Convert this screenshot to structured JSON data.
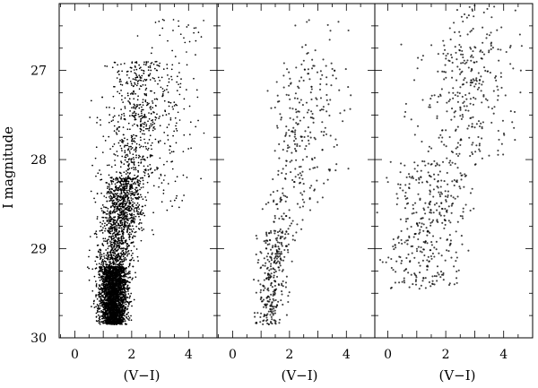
{
  "chart_data": {
    "type": "scatter",
    "ylabel": "I magnitude",
    "y_axis": {
      "range": [
        30.0,
        26.25
      ],
      "inverted": true,
      "ticks": [
        27,
        28,
        29,
        30
      ],
      "tick_labels": [
        "27",
        "28",
        "29",
        "30"
      ]
    },
    "grid": false,
    "legend": "none",
    "marker_color": "#000000",
    "panels": [
      {
        "xlabel": "(V−I)",
        "xlim": [
          -0.55,
          5.0
        ],
        "x_ticks": [
          0,
          2,
          4
        ],
        "x_tick_labels": [
          "0",
          "2",
          "4"
        ],
        "n_points": 4500,
        "groups": [
          {
            "points": 2600,
            "x_center": 1.35,
            "x_spread": 0.24,
            "y_range": [
              29.2,
              29.85
            ],
            "shape": "dense_base"
          },
          {
            "points": 1200,
            "x_center": 1.3,
            "x_spread": 0.28,
            "y_range": [
              28.2,
              29.2
            ],
            "shape": "rgb_lower"
          },
          {
            "points": 550,
            "x_center": 1.5,
            "x_spread": 0.4,
            "y_range": [
              26.9,
              28.2
            ],
            "shape": "rgb_upper"
          },
          {
            "points": 150,
            "x_center": 3.0,
            "x_spread": 0.9,
            "y_range": [
              26.4,
              28.6
            ],
            "shape": "red_fan"
          }
        ]
      },
      {
        "xlabel": "(V−I)",
        "xlim": [
          -0.55,
          5.0
        ],
        "x_ticks": [
          0,
          2,
          4
        ],
        "x_tick_labels": [
          "0",
          "2",
          "4"
        ],
        "n_points": 600,
        "groups": [
          {
            "points": 300,
            "x_center": 1.35,
            "x_spread": 0.25,
            "y_range": [
              28.8,
              29.85
            ],
            "shape": "rgb_lower"
          },
          {
            "points": 220,
            "x_center": 1.7,
            "x_spread": 0.35,
            "y_range": [
              26.9,
              28.8
            ],
            "shape": "rgb_upper"
          },
          {
            "points": 80,
            "x_center": 2.6,
            "x_spread": 0.8,
            "y_range": [
              26.4,
              28.4
            ],
            "shape": "red_fan"
          }
        ]
      },
      {
        "xlabel": "(V−I)",
        "xlim": [
          -0.45,
          5.0
        ],
        "x_ticks": [
          0,
          2,
          4
        ],
        "x_tick_labels": [
          "0",
          "2",
          "4"
        ],
        "n_points": 700,
        "groups": [
          {
            "points": 380,
            "x_center": 1.1,
            "x_spread": 0.55,
            "y_range": [
              28.0,
              29.45
            ],
            "shape": "broad_lower"
          },
          {
            "points": 250,
            "x_center": 1.9,
            "x_spread": 0.55,
            "y_range": [
              26.7,
              28.0
            ],
            "shape": "broad_upper"
          },
          {
            "points": 70,
            "x_center": 2.6,
            "x_spread": 0.8,
            "y_range": [
              26.25,
              27.3
            ],
            "shape": "red_fan"
          }
        ]
      }
    ]
  }
}
